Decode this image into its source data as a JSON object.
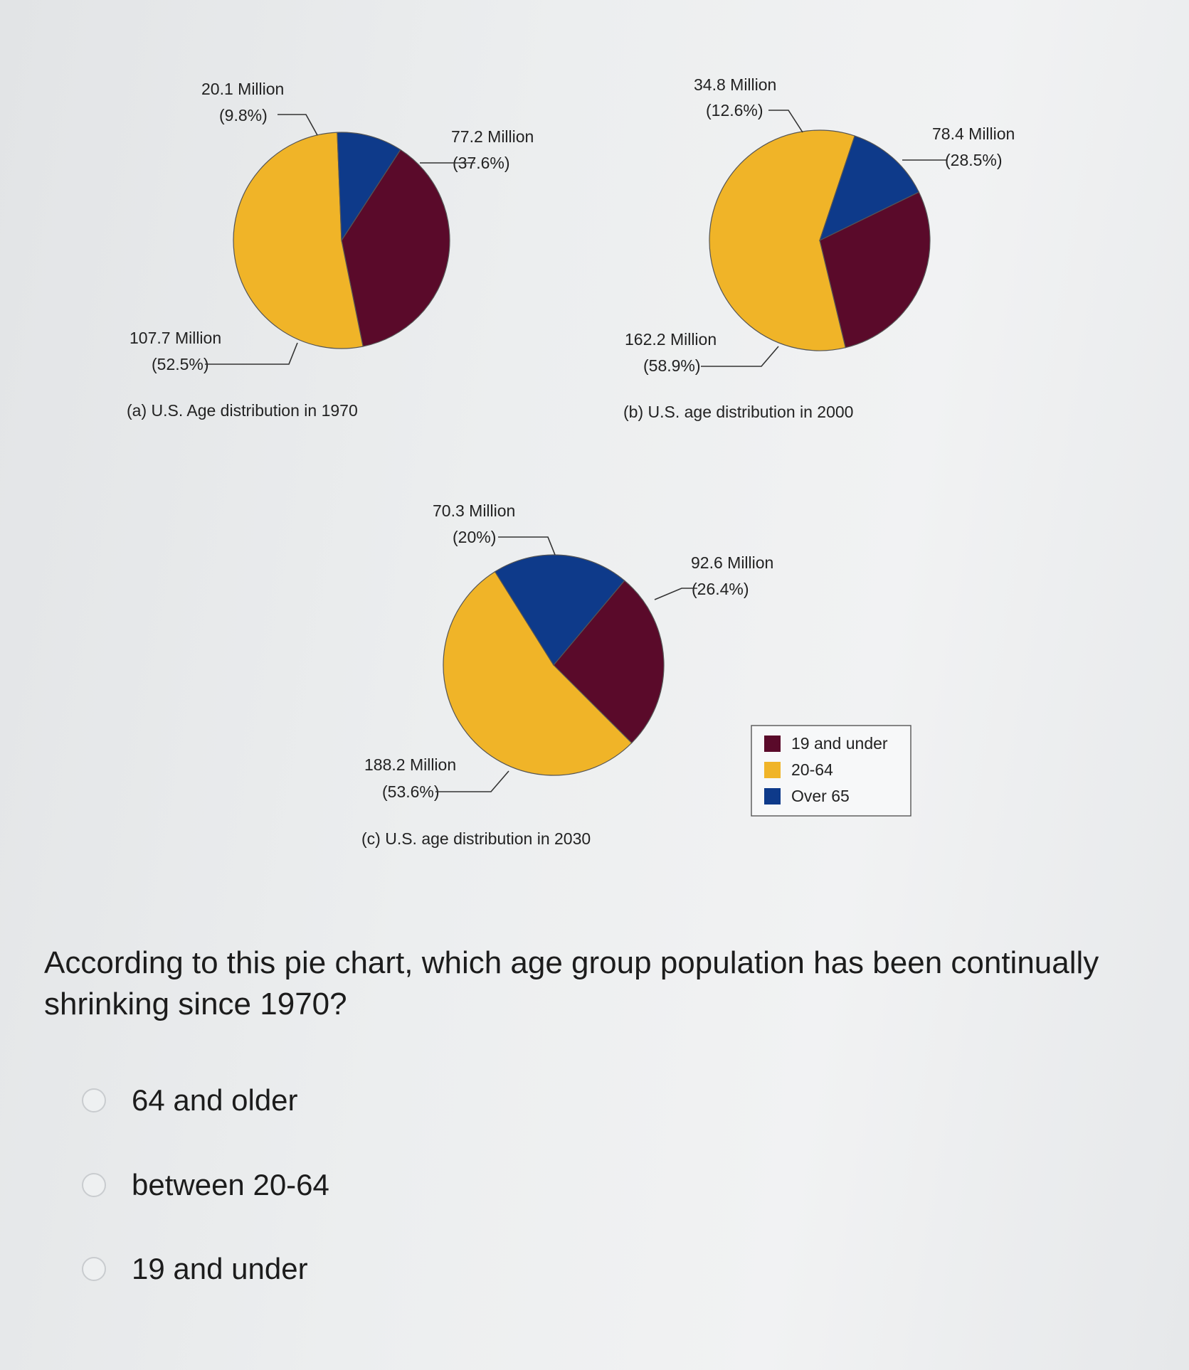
{
  "chart_data": {
    "type": "pie",
    "legend": {
      "placement": "right",
      "entries": [
        "19 and under",
        "20-64",
        "Over 65"
      ],
      "colors": [
        "#5a0a2a",
        "#f0b428",
        "#0e3a8a"
      ]
    },
    "charts": [
      {
        "caption": "(a) U.S. Age distribution in 1970",
        "slices": [
          {
            "group": "19 and under",
            "value": 77.2,
            "label": "77.2 Million",
            "percent_label": "(37.6%)"
          },
          {
            "group": "20-64",
            "value": 107.7,
            "label": "107.7 Million",
            "percent_label": "(52.5%)"
          },
          {
            "group": "Over 65",
            "value": 20.1,
            "label": "20.1 Million",
            "percent_label": "(9.8%)"
          }
        ]
      },
      {
        "caption": "(b) U.S. age distribution in 2000",
        "slices": [
          {
            "group": "19 and under",
            "value": 78.4,
            "label": "78.4 Million",
            "percent_label": "(28.5%)"
          },
          {
            "group": "20-64",
            "value": 162.2,
            "label": "162.2 Million",
            "percent_label": "(58.9%)"
          },
          {
            "group": "Over 65",
            "value": 34.8,
            "label": "34.8 Million",
            "percent_label": "(12.6%)"
          }
        ]
      },
      {
        "caption": "(c) U.S. age distribution in 2030",
        "slices": [
          {
            "group": "19 and under",
            "value": 92.6,
            "label": "92.6 Million",
            "percent_label": "(26.4%)"
          },
          {
            "group": "20-64",
            "value": 188.2,
            "label": "188.2 Million",
            "percent_label": "(53.6%)"
          },
          {
            "group": "Over 65",
            "value": 70.3,
            "label": "70.3 Million",
            "percent_label": "(20%)"
          }
        ]
      }
    ]
  },
  "question": {
    "text": "According to this pie chart, which age group population has been continually shrinking since 1970?"
  },
  "options": [
    {
      "label": "64 and older"
    },
    {
      "label": "between 20-64"
    },
    {
      "label": "19 and under"
    }
  ]
}
